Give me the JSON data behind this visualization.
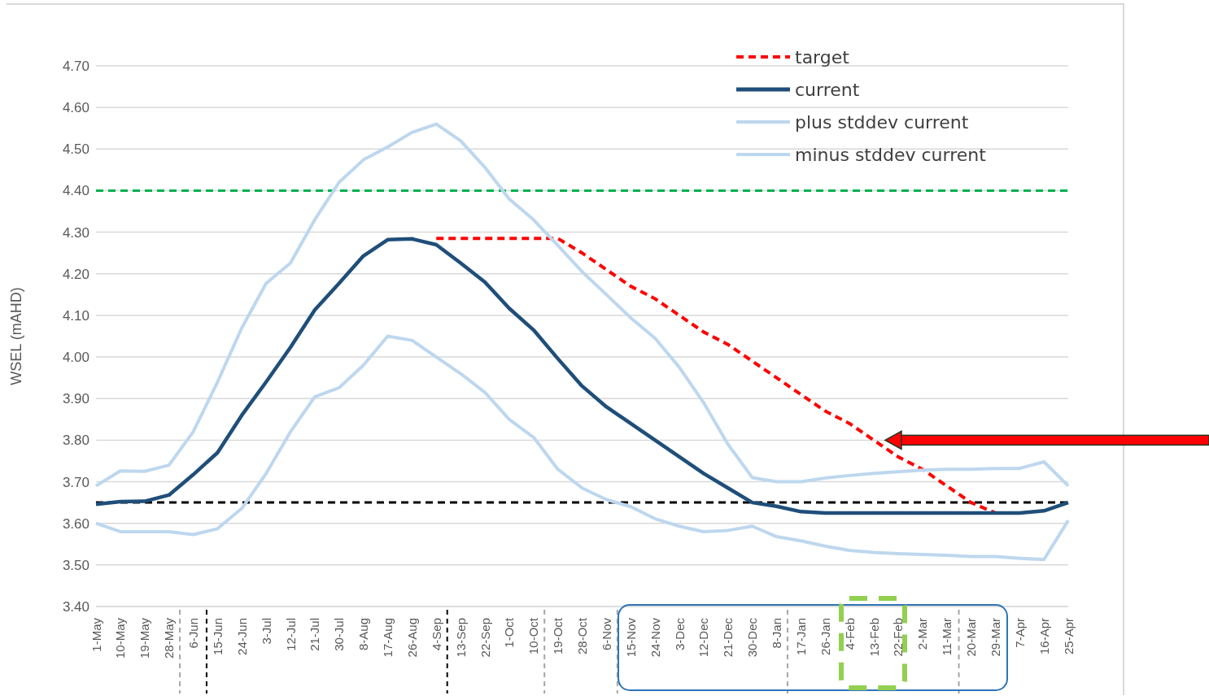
{
  "chart_data": {
    "type": "line",
    "ylabel": "WSEL (mAHD)",
    "categories": [
      "1-May",
      "10-May",
      "19-May",
      "28-May",
      "6-Jun",
      "15-Jun",
      "24-Jun",
      "3-Jul",
      "12-Jul",
      "21-Jul",
      "30-Jul",
      "8-Aug",
      "17-Aug",
      "26-Aug",
      "4-Sep",
      "13-Sep",
      "22-Sep",
      "1-Oct",
      "10-Oct",
      "19-Oct",
      "28-Oct",
      "6-Nov",
      "15-Nov",
      "24-Nov",
      "3-Dec",
      "12-Dec",
      "21-Dec",
      "30-Dec",
      "8-Jan",
      "17-Jan",
      "26-Jan",
      "4-Feb",
      "13-Feb",
      "22-Feb",
      "2-Mar",
      "11-Mar",
      "20-Mar",
      "29-Mar",
      "7-Apr",
      "16-Apr",
      "25-Apr"
    ],
    "series": [
      {
        "name": "target",
        "color": "#ff0000",
        "line_style": "dashed",
        "values": [
          null,
          null,
          null,
          null,
          null,
          null,
          null,
          null,
          null,
          null,
          null,
          null,
          null,
          null,
          4.285,
          4.285,
          4.285,
          4.285,
          4.285,
          4.285,
          4.25,
          4.21,
          4.17,
          4.14,
          4.1,
          4.06,
          4.03,
          3.99,
          3.95,
          3.91,
          3.87,
          3.84,
          3.8,
          3.76,
          3.73,
          3.69,
          3.65,
          3.625,
          null,
          null,
          null
        ]
      },
      {
        "name": "current",
        "color": "#1f4e79",
        "line_style": "solid",
        "values": [
          3.646,
          3.652,
          3.653,
          3.668,
          3.717,
          3.77,
          3.86,
          3.94,
          4.023,
          4.113,
          4.177,
          4.243,
          4.282,
          4.284,
          4.27,
          4.226,
          4.18,
          4.117,
          4.065,
          3.996,
          3.93,
          3.88,
          3.84,
          3.8,
          3.76,
          3.72,
          3.685,
          3.65,
          3.641,
          3.628,
          3.625,
          3.625,
          3.625,
          3.625,
          3.625,
          3.625,
          3.625,
          3.625,
          3.625,
          3.63,
          3.65
        ]
      },
      {
        "name": "plus stddev current",
        "color": "#bdd7ee",
        "line_style": "solid",
        "values": [
          3.69,
          3.726,
          3.725,
          3.74,
          3.82,
          3.94,
          4.07,
          4.177,
          4.226,
          4.33,
          4.42,
          4.474,
          4.505,
          4.54,
          4.56,
          4.52,
          4.456,
          4.38,
          4.33,
          4.268,
          4.205,
          4.15,
          4.094,
          4.045,
          3.975,
          3.89,
          3.79,
          3.71,
          3.7,
          3.7,
          3.709,
          3.715,
          3.72,
          3.724,
          3.728,
          3.73,
          3.73,
          3.732,
          3.732,
          3.748,
          3.69
        ]
      },
      {
        "name": "minus stddev current",
        "color": "#bdd7ee",
        "line_style": "solid",
        "values": [
          3.6,
          3.58,
          3.58,
          3.58,
          3.573,
          3.587,
          3.636,
          3.72,
          3.82,
          3.904,
          3.926,
          3.98,
          4.05,
          4.04,
          4.0,
          3.96,
          3.915,
          3.85,
          3.807,
          3.73,
          3.685,
          3.657,
          3.64,
          3.611,
          3.593,
          3.58,
          3.583,
          3.593,
          3.568,
          3.558,
          3.545,
          3.535,
          3.53,
          3.527,
          3.525,
          3.523,
          3.52,
          3.52,
          3.516,
          3.513,
          3.607
        ]
      }
    ],
    "ylim": [
      3.4,
      4.7
    ],
    "yticks": [
      {
        "value": 3.4,
        "label": "3.40"
      },
      {
        "value": 3.5,
        "label": "3.50"
      },
      {
        "value": 3.6,
        "label": "3.60"
      },
      {
        "value": 3.7,
        "label": "3.70"
      },
      {
        "value": 3.8,
        "label": "3.80"
      },
      {
        "value": 3.9,
        "label": "3.90"
      },
      {
        "value": 4.0,
        "label": "4.00"
      },
      {
        "value": 4.1,
        "label": "4.10"
      },
      {
        "value": 4.2,
        "label": "4.20"
      },
      {
        "value": 4.3,
        "label": "4.30"
      },
      {
        "value": 4.4,
        "label": "4.40"
      },
      {
        "value": 4.5,
        "label": "4.50"
      },
      {
        "value": 4.6,
        "label": "4.60"
      },
      {
        "value": 4.7,
        "label": "4.70"
      }
    ],
    "grid": "y",
    "legend": "top right",
    "marker": "none",
    "ref_lines": [
      {
        "axis": "y",
        "value": 4.4,
        "color": "#00b050",
        "line_style": "dashed"
      },
      {
        "axis": "y",
        "value": 3.65,
        "color": "#000000",
        "line_style": "dashed"
      }
    ]
  }
}
